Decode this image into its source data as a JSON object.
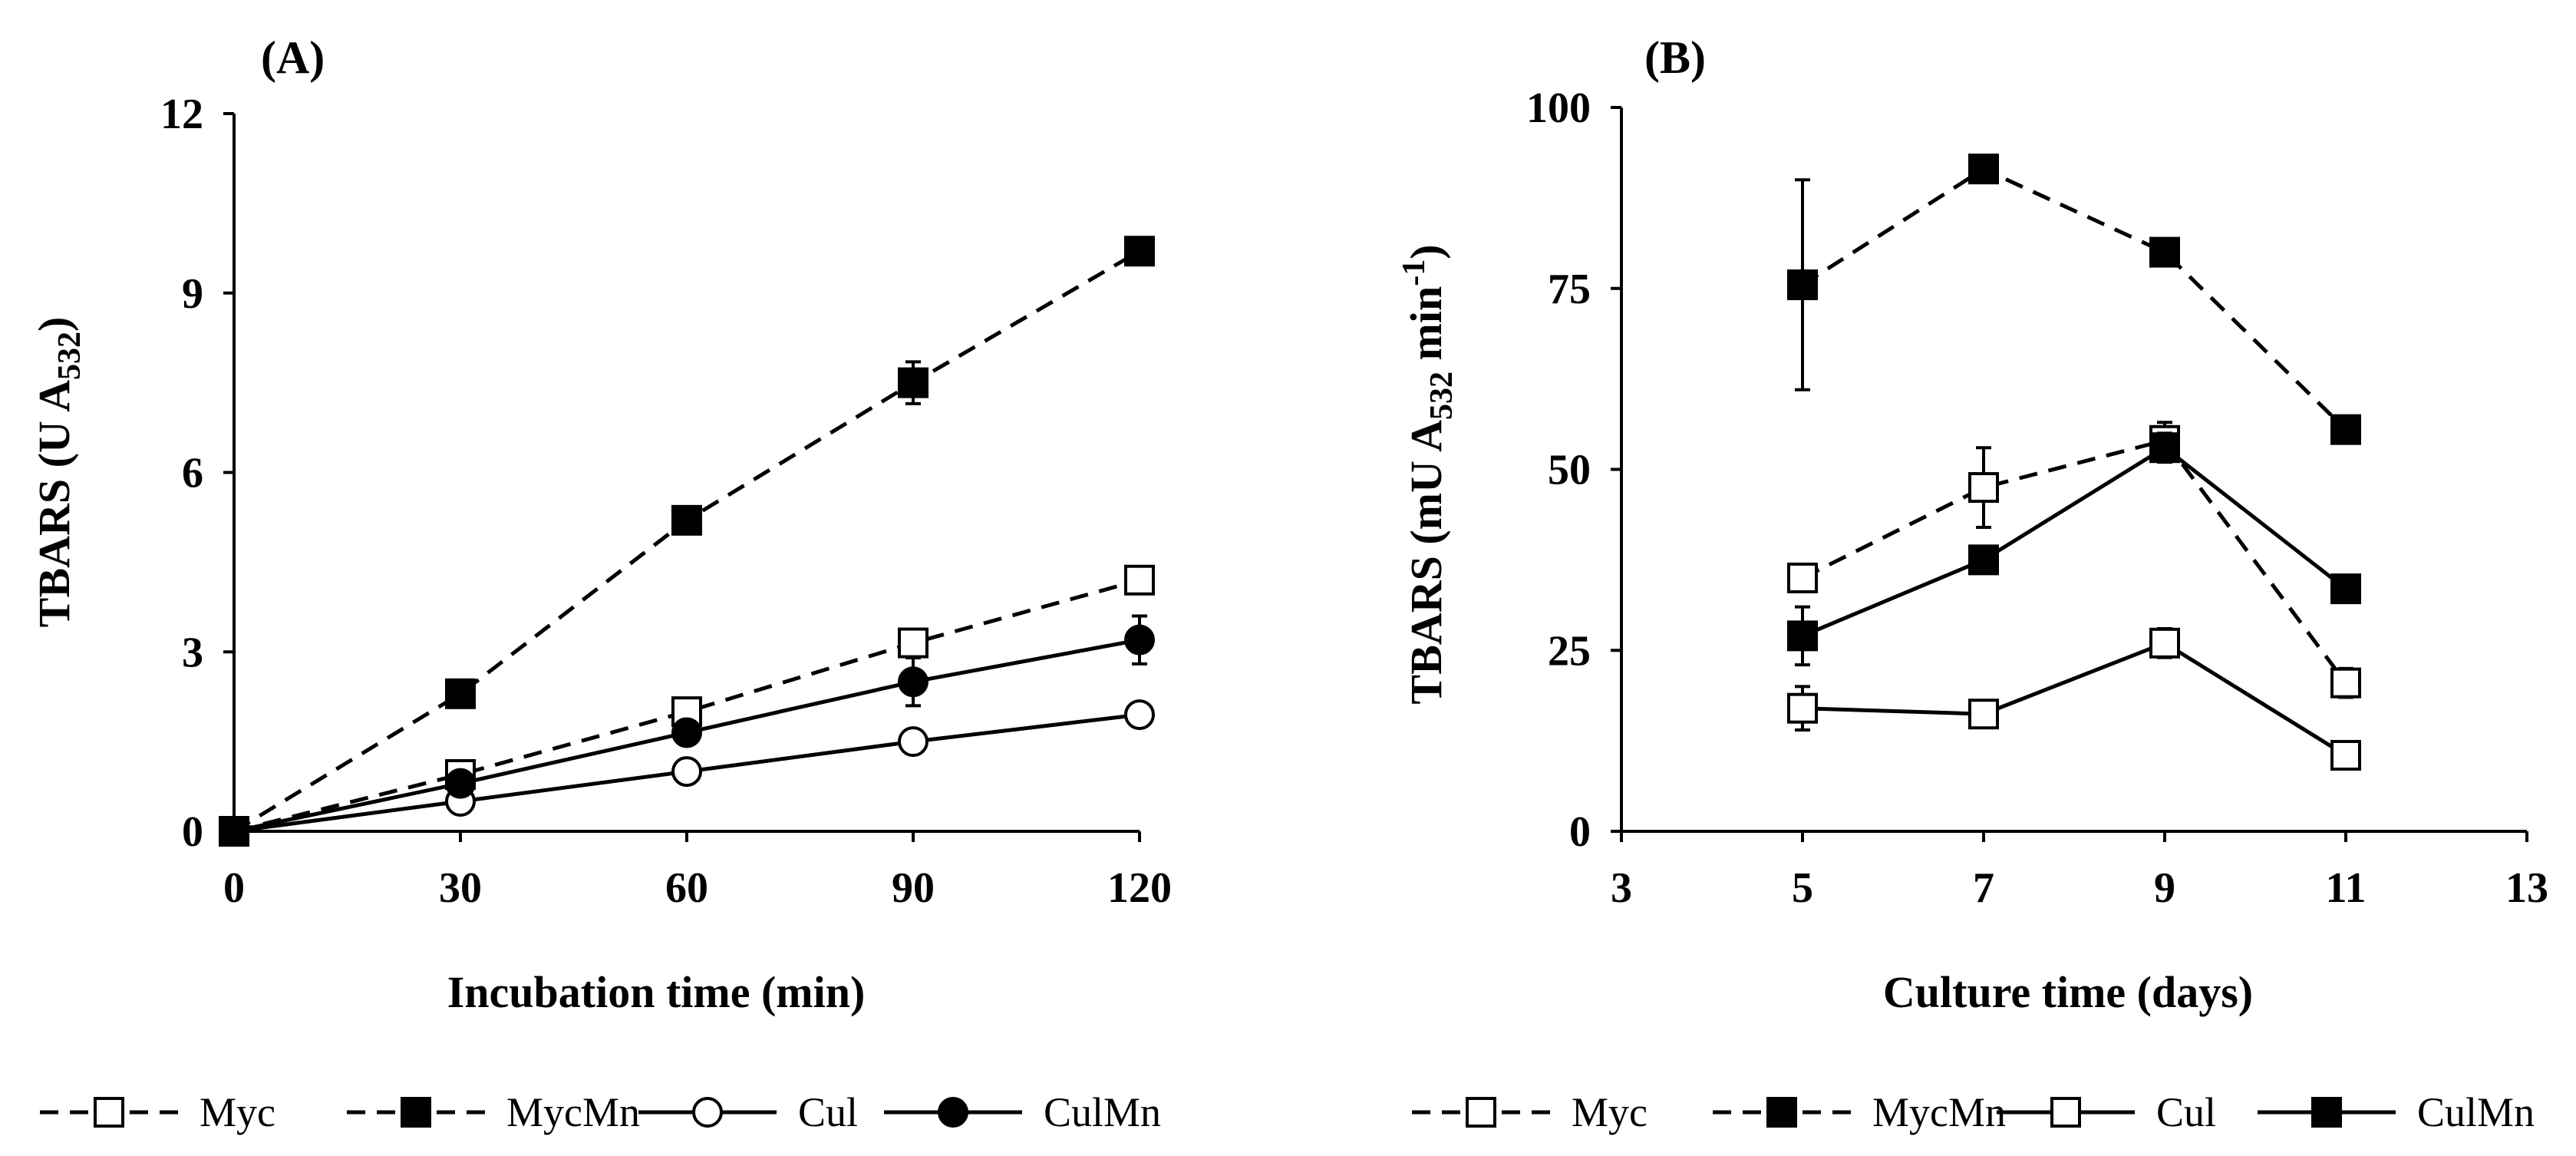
{
  "chart_data": [
    {
      "panel_label": "(A)",
      "type": "line",
      "xlabel": "Incubation time (min)",
      "ylabel_main": "TBARS (U A",
      "ylabel_sub": "532",
      "ylabel_tail": ")",
      "xlim": [
        0,
        120
      ],
      "ylim": [
        0,
        12
      ],
      "xticks": [
        0,
        30,
        60,
        90,
        120
      ],
      "yticks": [
        0,
        3,
        6,
        9,
        12
      ],
      "xtick_labels": [
        "0",
        "30",
        "60",
        "90",
        "120"
      ],
      "ytick_labels": [
        "0",
        "3",
        "6",
        "9",
        "12"
      ],
      "series": [
        {
          "name": "Myc",
          "line": "dashed",
          "marker": "square",
          "filled": false,
          "x": [
            0,
            30,
            60,
            90,
            120
          ],
          "y": [
            0,
            0.95,
            2.0,
            3.15,
            4.2
          ],
          "err": [
            0,
            0.08,
            0.15,
            0.1,
            0.1
          ]
        },
        {
          "name": "MycMn",
          "line": "dashed",
          "marker": "square",
          "filled": true,
          "x": [
            0,
            30,
            60,
            90,
            120
          ],
          "y": [
            0,
            2.3,
            5.2,
            7.5,
            9.7
          ],
          "err": [
            0,
            0.1,
            0.1,
            0.35,
            0.1
          ]
        },
        {
          "name": "Cul",
          "line": "solid",
          "marker": "circle",
          "filled": false,
          "x": [
            0,
            30,
            60,
            90,
            120
          ],
          "y": [
            0,
            0.5,
            1.0,
            1.5,
            1.95
          ],
          "err": [
            0,
            0.1,
            0.15,
            0.15,
            0.15
          ]
        },
        {
          "name": "CulMn",
          "line": "solid",
          "marker": "circle",
          "filled": true,
          "x": [
            0,
            30,
            60,
            90,
            120
          ],
          "y": [
            0,
            0.8,
            1.65,
            2.5,
            3.2
          ],
          "err": [
            0,
            0.1,
            0.15,
            0.4,
            0.4
          ]
        }
      ]
    },
    {
      "panel_label": "(B)",
      "type": "line",
      "xlabel": "Culture time (days)",
      "ylabel_main": "TBARS (mU A",
      "ylabel_sub": "532",
      "ylabel_tail": " min",
      "ylabel_sup": "-1",
      "ylabel_close": ")",
      "xlim": [
        3,
        13
      ],
      "ylim": [
        0,
        100
      ],
      "xticks": [
        3,
        5,
        7,
        9,
        11,
        13
      ],
      "yticks": [
        0,
        25,
        50,
        75,
        100
      ],
      "xtick_labels": [
        "3",
        "5",
        "7",
        "9",
        "11",
        "13"
      ],
      "ytick_labels": [
        "0",
        "25",
        "50",
        "75",
        "100"
      ],
      "series": [
        {
          "name": "Myc",
          "line": "dashed",
          "marker": "square",
          "filled": false,
          "x": [
            5,
            7,
            9,
            11
          ],
          "y": [
            35,
            47.5,
            54,
            20.5
          ],
          "err": [
            1,
            5.5,
            2.5,
            2
          ]
        },
        {
          "name": "MycMn",
          "line": "dashed",
          "marker": "square",
          "filled": true,
          "x": [
            5,
            7,
            9,
            11
          ],
          "y": [
            75.5,
            91.5,
            80,
            55.5
          ],
          "err": [
            14.5,
            1,
            1,
            1
          ]
        },
        {
          "name": "Cul",
          "line": "solid",
          "marker": "square",
          "filled": false,
          "x": [
            5,
            7,
            9,
            11
          ],
          "y": [
            17,
            16.2,
            26,
            10.5
          ],
          "err": [
            3,
            1,
            2,
            1
          ]
        },
        {
          "name": "CulMn",
          "line": "solid",
          "marker": "square",
          "filled": true,
          "x": [
            5,
            7,
            9,
            11
          ],
          "y": [
            27,
            37.5,
            53,
            33.5
          ],
          "err": [
            4,
            1,
            2,
            1
          ]
        }
      ]
    }
  ]
}
